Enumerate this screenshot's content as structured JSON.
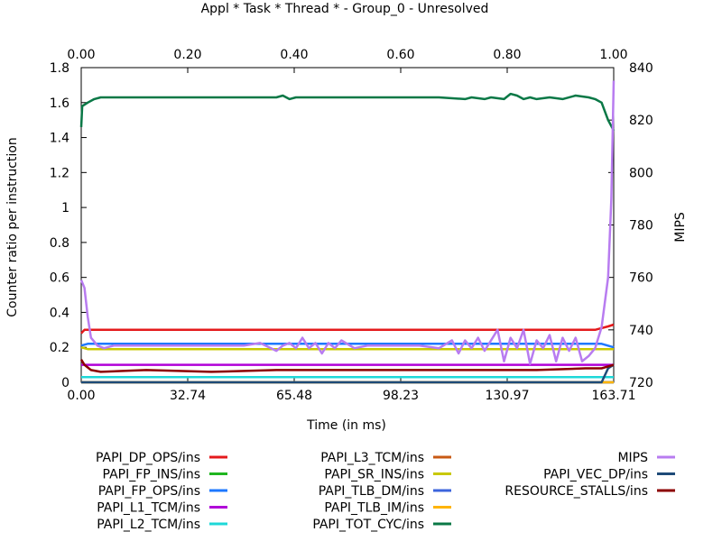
{
  "chart_data": {
    "type": "line",
    "title": "Appl * Task * Thread * - Group_0 - Unresolved",
    "xlabel": "Time (in ms)",
    "ylabel": "Counter ratio per instruction",
    "y2label": "MIPS",
    "xlim": [
      0,
      163.71
    ],
    "ylim": [
      0,
      1.8
    ],
    "y2lim": [
      720,
      840
    ],
    "x2lim": [
      0,
      1.0
    ],
    "x_ticks": [
      "0.00",
      "32.74",
      "65.48",
      "98.23",
      "130.97",
      "163.71"
    ],
    "x2_ticks": [
      "0.00",
      "0.20",
      "0.40",
      "0.60",
      "0.80",
      "1.00"
    ],
    "y_ticks": [
      "0",
      "0.2",
      "0.4",
      "0.6",
      "0.8",
      "1",
      "1.2",
      "1.4",
      "1.6",
      "1.8"
    ],
    "y2_ticks": [
      "720",
      "740",
      "760",
      "780",
      "800",
      "820",
      "840"
    ],
    "legend_position": "bottom",
    "series": [
      {
        "name": "PAPI_DP_OPS/ins",
        "color": "#e41a1c",
        "axis": "y",
        "points": [
          [
            0,
            0.28
          ],
          [
            1,
            0.3
          ],
          [
            20,
            0.3
          ],
          [
            80,
            0.3
          ],
          [
            140,
            0.3
          ],
          [
            158,
            0.3
          ],
          [
            162,
            0.32
          ],
          [
            163.71,
            0.33
          ]
        ]
      },
      {
        "name": "PAPI_FP_INS/ins",
        "color": "#1fb51f",
        "axis": "y",
        "points": [
          [
            0,
            0.0
          ],
          [
            163.71,
            0.0
          ]
        ]
      },
      {
        "name": "PAPI_FP_OPS/ins",
        "color": "#1e78ff",
        "axis": "y",
        "points": [
          [
            0,
            0.21
          ],
          [
            2,
            0.22
          ],
          [
            40,
            0.22
          ],
          [
            100,
            0.22
          ],
          [
            150,
            0.22
          ],
          [
            160,
            0.22
          ],
          [
            163.71,
            0.2
          ]
        ]
      },
      {
        "name": "PAPI_L1_TCM/ins",
        "color": "#b000d8",
        "axis": "y",
        "points": [
          [
            0,
            0.1
          ],
          [
            1,
            0.1
          ],
          [
            60,
            0.1
          ],
          [
            120,
            0.1
          ],
          [
            163.71,
            0.1
          ]
        ]
      },
      {
        "name": "PAPI_L2_TCM/ins",
        "color": "#1ed8d8",
        "axis": "y",
        "points": [
          [
            0,
            0.03
          ],
          [
            163.71,
            0.03
          ]
        ]
      },
      {
        "name": "PAPI_L3_TCM/ins",
        "color": "#c85a14",
        "axis": "y",
        "points": [
          [
            0,
            0.0
          ],
          [
            163.71,
            0.0
          ]
        ]
      },
      {
        "name": "PAPI_SR_INS/ins",
        "color": "#c8c800",
        "axis": "y",
        "points": [
          [
            0,
            0.2
          ],
          [
            2,
            0.19
          ],
          [
            50,
            0.19
          ],
          [
            120,
            0.19
          ],
          [
            163.71,
            0.19
          ]
        ]
      },
      {
        "name": "PAPI_TLB_DM/ins",
        "color": "#3c64dc",
        "axis": "y",
        "points": [
          [
            0,
            0.0
          ],
          [
            163.71,
            0.0
          ]
        ]
      },
      {
        "name": "PAPI_TLB_IM/ins",
        "color": "#ffb400",
        "axis": "y",
        "points": [
          [
            0,
            0.0
          ],
          [
            163.71,
            0.0
          ]
        ]
      },
      {
        "name": "PAPI_TOT_CYC/ins",
        "color": "#0a7846",
        "axis": "y",
        "points": [
          [
            0,
            1.46
          ],
          [
            0.3,
            1.58
          ],
          [
            2,
            1.6
          ],
          [
            4,
            1.62
          ],
          [
            6,
            1.63
          ],
          [
            20,
            1.63
          ],
          [
            40,
            1.63
          ],
          [
            60,
            1.63
          ],
          [
            62,
            1.64
          ],
          [
            64,
            1.62
          ],
          [
            66,
            1.63
          ],
          [
            90,
            1.63
          ],
          [
            110,
            1.63
          ],
          [
            118,
            1.62
          ],
          [
            120,
            1.63
          ],
          [
            124,
            1.62
          ],
          [
            126,
            1.63
          ],
          [
            130,
            1.62
          ],
          [
            132,
            1.65
          ],
          [
            134,
            1.64
          ],
          [
            136,
            1.62
          ],
          [
            138,
            1.63
          ],
          [
            140,
            1.62
          ],
          [
            144,
            1.63
          ],
          [
            148,
            1.62
          ],
          [
            152,
            1.64
          ],
          [
            156,
            1.63
          ],
          [
            158,
            1.62
          ],
          [
            160,
            1.6
          ],
          [
            162,
            1.5
          ],
          [
            163.71,
            1.44
          ]
        ]
      },
      {
        "name": "MIPS",
        "color": "#b87cf0",
        "axis": "y2",
        "points": [
          [
            0,
            759
          ],
          [
            1,
            756
          ],
          [
            2,
            745
          ],
          [
            3,
            737
          ],
          [
            5,
            734
          ],
          [
            7,
            733
          ],
          [
            10,
            734
          ],
          [
            15,
            734
          ],
          [
            25,
            734
          ],
          [
            40,
            734
          ],
          [
            50,
            734
          ],
          [
            55,
            735
          ],
          [
            60,
            732
          ],
          [
            62,
            734
          ],
          [
            64,
            735
          ],
          [
            66,
            733
          ],
          [
            68,
            737
          ],
          [
            70,
            733
          ],
          [
            72,
            735
          ],
          [
            74,
            731
          ],
          [
            76,
            735
          ],
          [
            78,
            733
          ],
          [
            80,
            736
          ],
          [
            84,
            733
          ],
          [
            88,
            734
          ],
          [
            96,
            734
          ],
          [
            104,
            734
          ],
          [
            110,
            733
          ],
          [
            114,
            736
          ],
          [
            116,
            731
          ],
          [
            118,
            736
          ],
          [
            120,
            733
          ],
          [
            122,
            737
          ],
          [
            124,
            732
          ],
          [
            126,
            736
          ],
          [
            128,
            740
          ],
          [
            130,
            728
          ],
          [
            132,
            737
          ],
          [
            134,
            733
          ],
          [
            136,
            740
          ],
          [
            138,
            727
          ],
          [
            140,
            736
          ],
          [
            142,
            733
          ],
          [
            144,
            738
          ],
          [
            146,
            728
          ],
          [
            148,
            737
          ],
          [
            150,
            732
          ],
          [
            152,
            737
          ],
          [
            154,
            728
          ],
          [
            156,
            730
          ],
          [
            158,
            733
          ],
          [
            160,
            741
          ],
          [
            162,
            760
          ],
          [
            163,
            790
          ],
          [
            163.71,
            835
          ]
        ]
      },
      {
        "name": "PAPI_VEC_DP/ins",
        "color": "#1e4b78",
        "axis": "y",
        "points": [
          [
            0,
            0.0
          ],
          [
            160,
            0.0
          ],
          [
            162,
            0.08
          ],
          [
            163.71,
            0.1
          ]
        ]
      },
      {
        "name": "RESOURCE_STALLS/ins",
        "color": "#8c0000",
        "axis": "y",
        "points": [
          [
            0,
            0.13
          ],
          [
            1,
            0.1
          ],
          [
            3,
            0.07
          ],
          [
            6,
            0.06
          ],
          [
            20,
            0.07
          ],
          [
            40,
            0.06
          ],
          [
            60,
            0.07
          ],
          [
            80,
            0.07
          ],
          [
            100,
            0.07
          ],
          [
            120,
            0.07
          ],
          [
            140,
            0.07
          ],
          [
            155,
            0.08
          ],
          [
            160,
            0.08
          ],
          [
            163.71,
            0.1
          ]
        ]
      }
    ]
  }
}
